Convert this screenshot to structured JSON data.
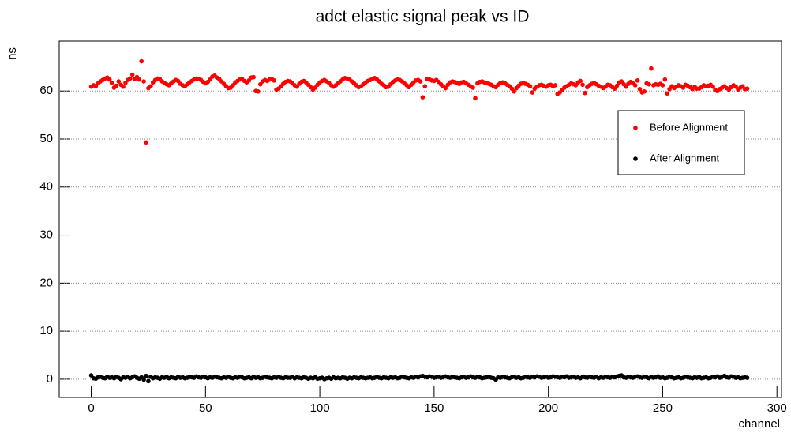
{
  "chart_data": {
    "type": "scatter",
    "title": "adct elastic signal peak vs ID",
    "x_label": "channel",
    "y_label": "ns",
    "xlim": [
      -14,
      302
    ],
    "ylim": [
      -3.8,
      70.4
    ],
    "xticks": [
      0,
      50,
      100,
      150,
      200,
      250,
      300
    ],
    "yticks": [
      0,
      10,
      20,
      30,
      40,
      50,
      60
    ],
    "grid": true,
    "legend": "top-right",
    "x": [
      0,
      1,
      2,
      3,
      4,
      5,
      6,
      7,
      8,
      9,
      10,
      11,
      12,
      13,
      14,
      15,
      16,
      17,
      18,
      19,
      20,
      21,
      22,
      23,
      24,
      25,
      26,
      27,
      28,
      29,
      30,
      31,
      32,
      33,
      34,
      35,
      36,
      37,
      38,
      39,
      40,
      41,
      42,
      43,
      44,
      45,
      46,
      47,
      48,
      49,
      50,
      51,
      52,
      53,
      54,
      55,
      56,
      57,
      58,
      59,
      60,
      61,
      62,
      63,
      64,
      65,
      66,
      67,
      68,
      69,
      70,
      71,
      72,
      73,
      74,
      75,
      76,
      77,
      78,
      79,
      80,
      81,
      82,
      83,
      84,
      85,
      86,
      87,
      88,
      89,
      90,
      91,
      92,
      93,
      94,
      95,
      96,
      97,
      98,
      99,
      100,
      101,
      102,
      103,
      104,
      105,
      106,
      107,
      108,
      109,
      110,
      111,
      112,
      113,
      114,
      115,
      116,
      117,
      118,
      119,
      120,
      121,
      122,
      123,
      124,
      125,
      126,
      127,
      128,
      129,
      130,
      131,
      132,
      133,
      134,
      135,
      136,
      137,
      138,
      139,
      140,
      141,
      142,
      143,
      144,
      145,
      146,
      147,
      148,
      149,
      150,
      151,
      152,
      153,
      154,
      155,
      156,
      157,
      158,
      159,
      160,
      161,
      162,
      163,
      164,
      165,
      166,
      167,
      168,
      169,
      170,
      171,
      172,
      173,
      174,
      175,
      176,
      177,
      178,
      179,
      180,
      181,
      182,
      183,
      184,
      185,
      186,
      187,
      188,
      189,
      190,
      191,
      192,
      193,
      194,
      195,
      196,
      197,
      198,
      199,
      200,
      201,
      202,
      203,
      204,
      205,
      206,
      207,
      208,
      209,
      210,
      211,
      212,
      213,
      214,
      215,
      216,
      217,
      218,
      219,
      220,
      221,
      222,
      223,
      224,
      225,
      226,
      227,
      228,
      229,
      230,
      231,
      232,
      233,
      234,
      235,
      236,
      237,
      238,
      239,
      240,
      241,
      242,
      243,
      244,
      245,
      246,
      247,
      248,
      249,
      250,
      251,
      252,
      253,
      254,
      255,
      256,
      257,
      258,
      259,
      260,
      261,
      262,
      263,
      264,
      265,
      266,
      267,
      268,
      269,
      270,
      271,
      272,
      273,
      274,
      275,
      276,
      277,
      278,
      279,
      280,
      281,
      282,
      283,
      284,
      285,
      286,
      287
    ],
    "series": [
      {
        "name": "Before Alignment",
        "color": "#ff0000",
        "values": [
          60.9,
          61.2,
          61.0,
          61.6,
          62.0,
          62.3,
          62.6,
          62.8,
          62.4,
          61.7,
          60.7,
          61.1,
          62.0,
          61.3,
          60.9,
          61.7,
          62.3,
          62.6,
          63.4,
          62.5,
          62.9,
          62.4,
          66.2,
          62.0,
          49.3,
          60.6,
          61.0,
          61.8,
          62.3,
          62.6,
          62.5,
          62.0,
          61.7,
          61.4,
          61.2,
          61.6,
          62.0,
          62.3,
          62.1,
          61.5,
          61.2,
          61.0,
          61.4,
          61.8,
          62.1,
          62.4,
          62.6,
          62.5,
          62.3,
          61.9,
          61.6,
          61.9,
          62.4,
          63.0,
          63.2,
          62.8,
          62.5,
          62.0,
          61.5,
          61.0,
          60.6,
          60.7,
          61.2,
          61.8,
          62.1,
          62.4,
          62.5,
          62.1,
          61.8,
          62.2,
          62.8,
          62.9,
          60.0,
          59.9,
          61.4,
          62.0,
          62.3,
          62.1,
          62.4,
          62.5,
          62.2,
          60.3,
          60.5,
          61.0,
          61.5,
          61.9,
          62.1,
          62.0,
          61.6,
          61.2,
          60.9,
          61.5,
          61.9,
          62.1,
          61.8,
          61.3,
          60.8,
          60.3,
          60.7,
          61.3,
          61.8,
          62.1,
          62.3,
          62.0,
          61.7,
          61.2,
          60.9,
          61.2,
          61.6,
          62.0,
          62.4,
          62.7,
          62.6,
          62.4,
          62.0,
          61.6,
          61.2,
          60.8,
          61.0,
          61.4,
          61.8,
          62.1,
          62.3,
          62.5,
          62.7,
          62.4,
          62.0,
          61.5,
          61.2,
          60.8,
          60.9,
          61.4,
          61.9,
          62.2,
          62.4,
          62.3,
          62.0,
          61.6,
          61.2,
          60.8,
          61.3,
          61.8,
          62.2,
          62.3,
          62.0,
          58.7,
          61.0,
          62.5,
          62.4,
          62.2,
          62.1,
          62.3,
          61.9,
          61.4,
          61.0,
          60.6,
          61.3,
          61.8,
          62.0,
          61.9,
          61.7,
          61.5,
          61.8,
          61.9,
          61.6,
          61.3,
          61.0,
          60.7,
          58.5,
          61.6,
          61.9,
          62.0,
          61.8,
          61.7,
          61.5,
          61.3,
          61.0,
          60.8,
          61.3,
          61.7,
          61.8,
          61.6,
          61.3,
          61.0,
          60.5,
          59.9,
          60.6,
          61.1,
          61.5,
          61.7,
          61.5,
          61.3,
          61.0,
          59.7,
          60.5,
          60.9,
          61.2,
          61.3,
          61.1,
          60.9,
          61.2,
          61.3,
          61.0,
          61.2,
          59.4,
          59.7,
          60.2,
          60.7,
          61.0,
          61.3,
          61.6,
          61.4,
          61.2,
          61.8,
          62.1,
          61.3,
          59.6,
          60.8,
          61.2,
          61.5,
          61.7,
          61.4,
          61.1,
          60.9,
          60.6,
          60.9,
          61.3,
          61.2,
          60.8,
          60.5,
          61.1,
          61.8,
          62.0,
          61.4,
          60.9,
          61.5,
          61.9,
          61.6,
          61.2,
          62.2,
          60.4,
          59.7,
          59.9,
          61.6,
          61.4,
          64.7,
          61.2,
          61.4,
          61.3,
          61.5,
          61.2,
          62.4,
          59.5,
          60.4,
          61.0,
          60.6,
          60.9,
          61.2,
          61.0,
          60.7,
          61.3,
          61.1,
          60.8,
          60.4,
          60.9,
          60.5,
          60.5,
          60.8,
          61.2,
          61.0,
          61.1,
          61.3,
          60.9,
          60.2,
          60.0,
          60.4,
          60.7,
          61.0,
          60.6,
          60.3,
          60.8,
          61.2,
          60.9,
          60.3,
          60.7,
          61.0,
          60.4,
          60.5
        ]
      },
      {
        "name": "After Alignment",
        "color": "#000000",
        "values": [
          0.8,
          0.2,
          0.1,
          0.4,
          0.5,
          0.3,
          0.2,
          0.5,
          0.3,
          0.4,
          0.2,
          0.5,
          0.3,
          0.0,
          0.4,
          0.3,
          0.5,
          0.2,
          0.4,
          0.6,
          0.3,
          0.1,
          0.4,
          -0.1,
          0.7,
          -0.4,
          0.5,
          0.2,
          0.4,
          0.3,
          0.1,
          0.4,
          0.3,
          0.5,
          0.2,
          0.4,
          0.3,
          0.2,
          0.5,
          0.3,
          0.4,
          0.2,
          0.3,
          0.5,
          0.4,
          0.3,
          0.6,
          0.4,
          0.3,
          0.5,
          0.4,
          0.2,
          0.4,
          0.3,
          0.5,
          0.4,
          0.3,
          0.2,
          0.4,
          0.3,
          0.5,
          0.3,
          0.2,
          0.4,
          0.3,
          0.5,
          0.4,
          0.2,
          0.3,
          0.4,
          0.2,
          0.5,
          0.3,
          0.4,
          0.2,
          0.3,
          0.5,
          0.4,
          0.3,
          0.2,
          0.4,
          0.3,
          0.5,
          0.3,
          0.2,
          0.4,
          0.3,
          0.3,
          0.5,
          0.2,
          0.4,
          0.3,
          0.2,
          0.4,
          0.3,
          0.1,
          0.3,
          0.2,
          0.4,
          0.1,
          0.2,
          0.3,
          0.0,
          0.2,
          0.3,
          0.1,
          0.4,
          0.2,
          0.3,
          0.2,
          0.4,
          0.3,
          0.1,
          0.3,
          0.2,
          0.4,
          0.3,
          0.2,
          0.4,
          0.3,
          0.2,
          0.3,
          0.4,
          0.2,
          0.3,
          0.5,
          0.3,
          0.2,
          0.4,
          0.3,
          0.2,
          0.4,
          0.3,
          0.4,
          0.2,
          0.3,
          0.5,
          0.4,
          0.3,
          0.2,
          0.4,
          0.3,
          0.5,
          0.4,
          0.6,
          0.7,
          0.5,
          0.4,
          0.6,
          0.5,
          0.3,
          0.4,
          0.5,
          0.3,
          0.4,
          0.6,
          0.4,
          0.3,
          0.5,
          0.4,
          0.3,
          0.2,
          0.4,
          0.5,
          0.3,
          0.4,
          0.6,
          0.4,
          0.3,
          0.5,
          0.4,
          0.2,
          0.3,
          0.4,
          0.5,
          0.3,
          0.2,
          -0.1,
          0.4,
          0.3,
          0.5,
          0.4,
          0.3,
          0.2,
          0.4,
          0.5,
          0.3,
          0.4,
          0.2,
          0.3,
          0.5,
          0.4,
          0.3,
          0.5,
          0.4,
          0.6,
          0.5,
          0.3,
          0.4,
          0.5,
          0.3,
          0.4,
          0.6,
          0.5,
          0.4,
          0.3,
          0.5,
          0.4,
          0.6,
          0.3,
          0.4,
          0.5,
          0.3,
          0.4,
          0.2,
          0.5,
          0.4,
          0.3,
          0.5,
          0.4,
          0.3,
          0.5,
          0.2,
          0.4,
          0.3,
          0.5,
          0.4,
          0.3,
          0.5,
          0.4,
          0.6,
          0.7,
          0.8,
          0.4,
          0.3,
          0.5,
          0.4,
          0.3,
          0.5,
          0.6,
          0.4,
          0.3,
          0.5,
          0.4,
          0.2,
          0.5,
          0.3,
          0.4,
          0.6,
          0.3,
          0.4,
          0.2,
          0.3,
          0.5,
          0.4,
          0.2,
          0.3,
          0.4,
          0.2,
          0.3,
          0.5,
          0.4,
          0.3,
          0.2,
          0.4,
          0.3,
          0.5,
          0.2,
          0.3,
          0.4,
          0.2,
          0.3,
          0.5,
          0.4,
          0.6,
          0.3,
          0.5,
          0.7,
          0.4,
          0.3,
          0.6,
          0.5,
          0.3,
          0.4,
          0.2,
          0.3,
          0.4,
          0.3
        ]
      }
    ]
  }
}
